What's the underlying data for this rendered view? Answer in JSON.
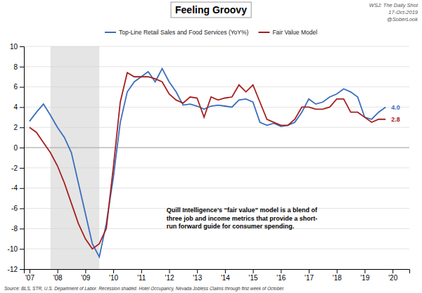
{
  "chart_data": {
    "type": "line",
    "title": "Feeling Groovy",
    "x": [
      2007.0,
      2007.25,
      2007.5,
      2007.75,
      2008.0,
      2008.25,
      2008.5,
      2008.75,
      2009.0,
      2009.25,
      2009.5,
      2009.75,
      2010.0,
      2010.25,
      2010.5,
      2010.75,
      2011.0,
      2011.25,
      2011.5,
      2011.75,
      2012.0,
      2012.25,
      2012.5,
      2012.75,
      2013.0,
      2013.25,
      2013.5,
      2013.75,
      2014.0,
      2014.25,
      2014.5,
      2014.75,
      2015.0,
      2015.25,
      2015.5,
      2015.75,
      2016.0,
      2016.25,
      2016.5,
      2016.75,
      2017.0,
      2017.25,
      2017.5,
      2017.75,
      2018.0,
      2018.25,
      2018.5,
      2018.75,
      2019.0,
      2019.25,
      2019.5,
      2019.75
    ],
    "series": [
      {
        "name": "Top-Line Retail Sales and Food Services (YoY%)",
        "color": "#3a6ebd",
        "end_label": "4.0",
        "values": [
          2.6,
          3.5,
          4.3,
          3.2,
          2.0,
          1.0,
          -0.5,
          -3.5,
          -6.5,
          -9.5,
          -10.8,
          -7.5,
          -3.0,
          2.5,
          5.5,
          6.5,
          7.0,
          7.5,
          6.5,
          7.8,
          6.5,
          5.5,
          4.2,
          4.3,
          4.1,
          3.8,
          4.1,
          4.2,
          4.1,
          4.0,
          4.7,
          4.8,
          4.5,
          2.5,
          2.2,
          2.4,
          2.1,
          2.2,
          2.5,
          3.5,
          4.8,
          4.3,
          4.5,
          5.0,
          5.3,
          5.8,
          5.5,
          5.0,
          3.0,
          2.8,
          3.5,
          4.0
        ]
      },
      {
        "name": "Fair Value Model",
        "color": "#a52020",
        "end_label": "2.8",
        "values": [
          2.0,
          1.5,
          0.5,
          -0.5,
          -1.8,
          -3.5,
          -5.5,
          -7.5,
          -9.0,
          -10.0,
          -9.5,
          -8.0,
          -2.0,
          4.5,
          7.4,
          7.0,
          7.0,
          7.0,
          6.8,
          6.5,
          5.3,
          4.7,
          4.4,
          5.0,
          4.9,
          3.0,
          5.0,
          4.7,
          4.9,
          5.0,
          6.2,
          5.5,
          6.2,
          4.5,
          2.8,
          2.5,
          2.2,
          2.2,
          2.8,
          4.0,
          4.0,
          3.8,
          3.8,
          4.0,
          4.8,
          4.8,
          3.5,
          3.5,
          3.0,
          2.5,
          2.8,
          2.8
        ]
      }
    ],
    "recession": [
      2007.75,
      2009.5
    ],
    "xlim": [
      2006.8,
      2020.6
    ],
    "xticks": [
      {
        "value": 2007,
        "label": "'07"
      },
      {
        "value": 2008,
        "label": "'08"
      },
      {
        "value": 2009,
        "label": "'09"
      },
      {
        "value": 2010,
        "label": "'10"
      },
      {
        "value": 2011,
        "label": "'11"
      },
      {
        "value": 2012,
        "label": "'12"
      },
      {
        "value": 2013,
        "label": "'13"
      },
      {
        "value": 2014,
        "label": "'14"
      },
      {
        "value": 2015,
        "label": "'15"
      },
      {
        "value": 2016,
        "label": "'16"
      },
      {
        "value": 2017,
        "label": "'17"
      },
      {
        "value": 2018,
        "label": "'18"
      },
      {
        "value": 2019,
        "label": "'19"
      },
      {
        "value": 2020,
        "label": "'20"
      }
    ],
    "ylim": [
      -12,
      10
    ],
    "yticks": [
      -12,
      -10,
      -8,
      -6,
      -4,
      -2,
      0,
      2,
      4,
      6,
      8,
      10
    ],
    "grid": true,
    "legend": "top",
    "annotation": "Quill Intelligence’s “fair value” model is a blend of\nthree job and income metrics that provide a short-\nrun forward guide for consumer spending.",
    "attribution": [
      "WSJ: The Daily Shot",
      "17-Oct-2019",
      "@SoberLook"
    ],
    "source": "Source:  BLS, STR, U.S. Department of Labor. Recession shaded. Hotel Occupancy, Nevada Jobless Claims through first week of October."
  }
}
